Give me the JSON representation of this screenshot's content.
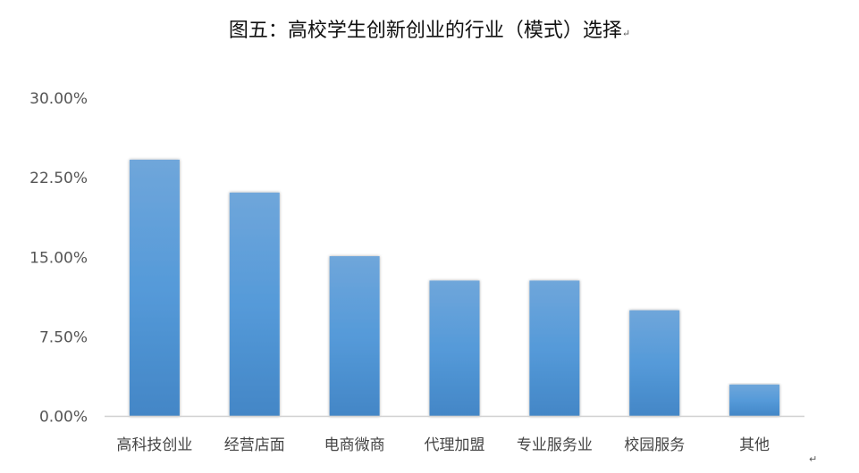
{
  "chart_data": {
    "type": "bar",
    "title": "图五：高校学生创新创业的行业（模式）选择",
    "categories": [
      "高科技创业",
      "经营店面",
      "电商微商",
      "代理加盟",
      "专业服务业",
      "校园服务",
      "其他"
    ],
    "values": [
      24.2,
      21.1,
      15.1,
      12.8,
      12.8,
      10.0,
      3.0
    ],
    "unit": "%",
    "yticks": [
      "0.00%",
      "7.50%",
      "15.00%",
      "22.50%",
      "30.00%"
    ],
    "ylim": [
      0,
      30
    ],
    "xlabel": "",
    "ylabel": "",
    "grid": false,
    "legend": "none",
    "bar_color": "#5b9bd5"
  }
}
